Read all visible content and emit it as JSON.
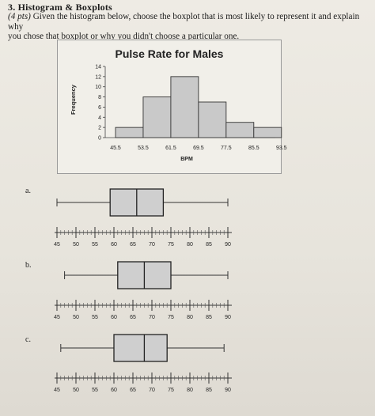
{
  "question": {
    "heading": "3. Histogram & Boxplots",
    "points": "(4 pts)",
    "text_line1": " Given the histogram below, choose the boxplot that is most likely to represent it and explain why",
    "text_line2": "you chose that boxplot or why you didn't choose a particular one."
  },
  "chart_data": {
    "type": "bar",
    "title": "Pulse Rate for Males",
    "xlabel": "BPM",
    "ylabel": "Frequency",
    "bin_edges": [
      "45.5",
      "53.5",
      "61.5",
      "69.5",
      "77.5",
      "85.5",
      "93.5"
    ],
    "values": [
      2,
      8,
      12,
      7,
      3,
      2
    ],
    "y_ticks": [
      "0",
      "2",
      "4",
      "6",
      "8",
      "10",
      "12",
      "14"
    ],
    "ylim": [
      0,
      14
    ],
    "grid": false,
    "bar_color": "#c9c9c9"
  },
  "boxplots": [
    {
      "label": "a.",
      "min": 45,
      "q1": 59,
      "median": 66,
      "q3": 73,
      "max": 90
    },
    {
      "label": "b.",
      "min": 47,
      "q1": 61,
      "median": 68,
      "q3": 75,
      "max": 90
    },
    {
      "label": "c.",
      "min": 46,
      "q1": 60,
      "median": 68,
      "q3": 74,
      "max": 89
    }
  ],
  "boxplot_axis": {
    "ticks": [
      "45",
      "50",
      "55",
      "60",
      "65",
      "70",
      "75",
      "80",
      "85",
      "90"
    ]
  }
}
